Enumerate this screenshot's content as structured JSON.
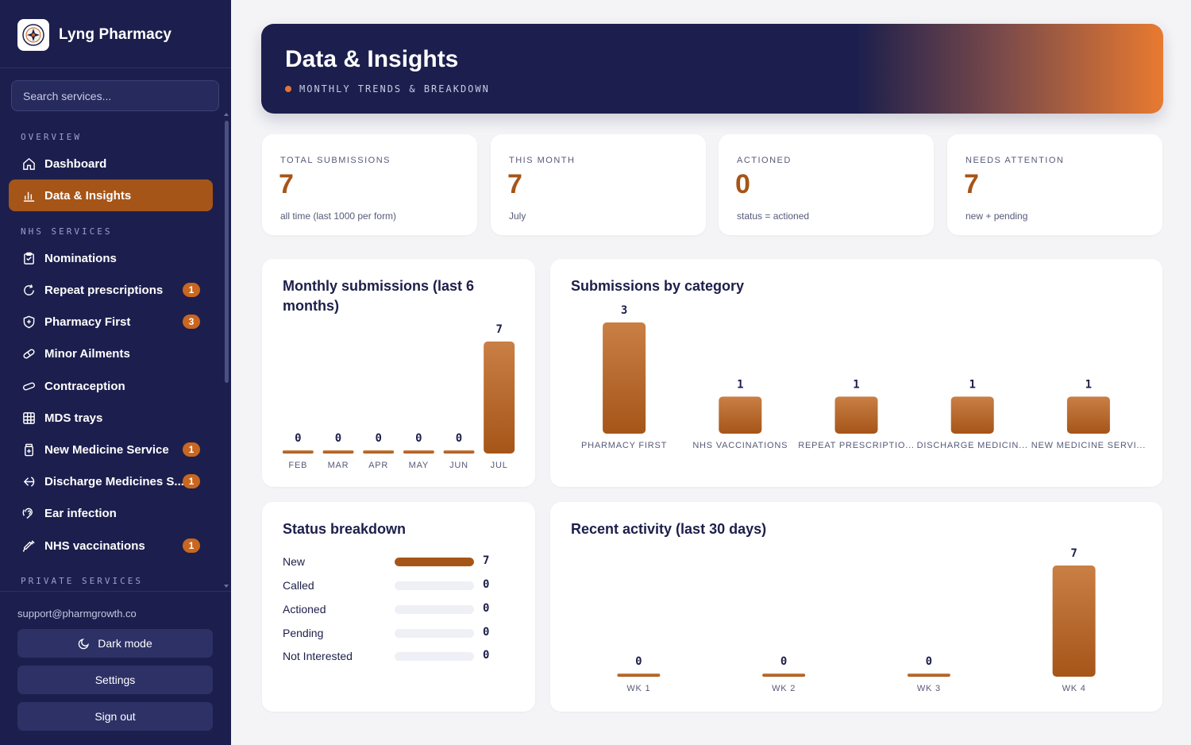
{
  "app": {
    "name": "Lyng Pharmacy"
  },
  "search": {
    "placeholder": "Search services..."
  },
  "sidebar": {
    "sections": {
      "overview": "OVERVIEW",
      "nhs": "NHS SERVICES",
      "private": "PRIVATE SERVICES"
    },
    "items": [
      {
        "label": "Dashboard",
        "icon": "home-icon"
      },
      {
        "label": "Data & Insights",
        "icon": "bar-chart-icon",
        "active": true
      },
      {
        "label": "Nominations",
        "icon": "clipboard-icon"
      },
      {
        "label": "Repeat prescriptions",
        "icon": "refresh-icon",
        "badge": "1"
      },
      {
        "label": "Pharmacy First",
        "icon": "shield-plus-icon",
        "badge": "3"
      },
      {
        "label": "Minor Ailments",
        "icon": "pill-icon"
      },
      {
        "label": "Contraception",
        "icon": "capsule-icon"
      },
      {
        "label": "MDS trays",
        "icon": "grid-icon"
      },
      {
        "label": "New Medicine Service",
        "icon": "medicine-bottle-icon",
        "badge": "1"
      },
      {
        "label": "Discharge Medicines S...",
        "icon": "discharge-icon",
        "badge": "1"
      },
      {
        "label": "Ear infection",
        "icon": "ear-icon"
      },
      {
        "label": "NHS vaccinations",
        "icon": "syringe-icon",
        "badge": "1"
      }
    ],
    "footer": {
      "support_email": "support@pharmgrowth.co",
      "dark_mode": "Dark mode",
      "settings": "Settings",
      "sign_out": "Sign out"
    }
  },
  "hero": {
    "title": "Data & Insights",
    "subtitle": "MONTHLY TRENDS & BREAKDOWN"
  },
  "stats": [
    {
      "label": "TOTAL SUBMISSIONS",
      "value": "7",
      "note": "all time (last 1000 per form)"
    },
    {
      "label": "THIS MONTH",
      "value": "7",
      "note": "July"
    },
    {
      "label": "ACTIONED",
      "value": "0",
      "note": "status = actioned"
    },
    {
      "label": "NEEDS ATTENTION",
      "value": "7",
      "note": "new + pending"
    }
  ],
  "colors": {
    "accent": "#a65518",
    "navy": "#1c1f4d",
    "bar_top": "#c97f45",
    "bar_bottom": "#a65518"
  },
  "chart_data": [
    {
      "type": "bar",
      "title": "Monthly submissions (last 6 months)",
      "categories": [
        "FEB",
        "MAR",
        "APR",
        "MAY",
        "JUN",
        "JUL"
      ],
      "values": [
        0,
        0,
        0,
        0,
        0,
        7
      ],
      "ylim": [
        0,
        7
      ]
    },
    {
      "type": "bar",
      "title": "Submissions by category",
      "categories": [
        "PHARMACY FIRST",
        "NHS VACCINATIONS",
        "REPEAT PRESCRIPTIO...",
        "DISCHARGE MEDICIN...",
        "NEW MEDICINE SERVI..."
      ],
      "values": [
        3,
        1,
        1,
        1,
        1
      ],
      "ylim": [
        0,
        3
      ]
    },
    {
      "type": "bar",
      "title": "Recent activity (last 30 days)",
      "categories": [
        "WK 1",
        "WK 2",
        "WK 3",
        "WK 4"
      ],
      "values": [
        0,
        0,
        0,
        7
      ],
      "ylim": [
        0,
        7
      ]
    }
  ],
  "status_breakdown": {
    "title": "Status breakdown",
    "max": 7,
    "rows": [
      {
        "label": "New",
        "count": 7
      },
      {
        "label": "Called",
        "count": 0
      },
      {
        "label": "Actioned",
        "count": 0
      },
      {
        "label": "Pending",
        "count": 0
      },
      {
        "label": "Not Interested",
        "count": 0
      }
    ]
  }
}
